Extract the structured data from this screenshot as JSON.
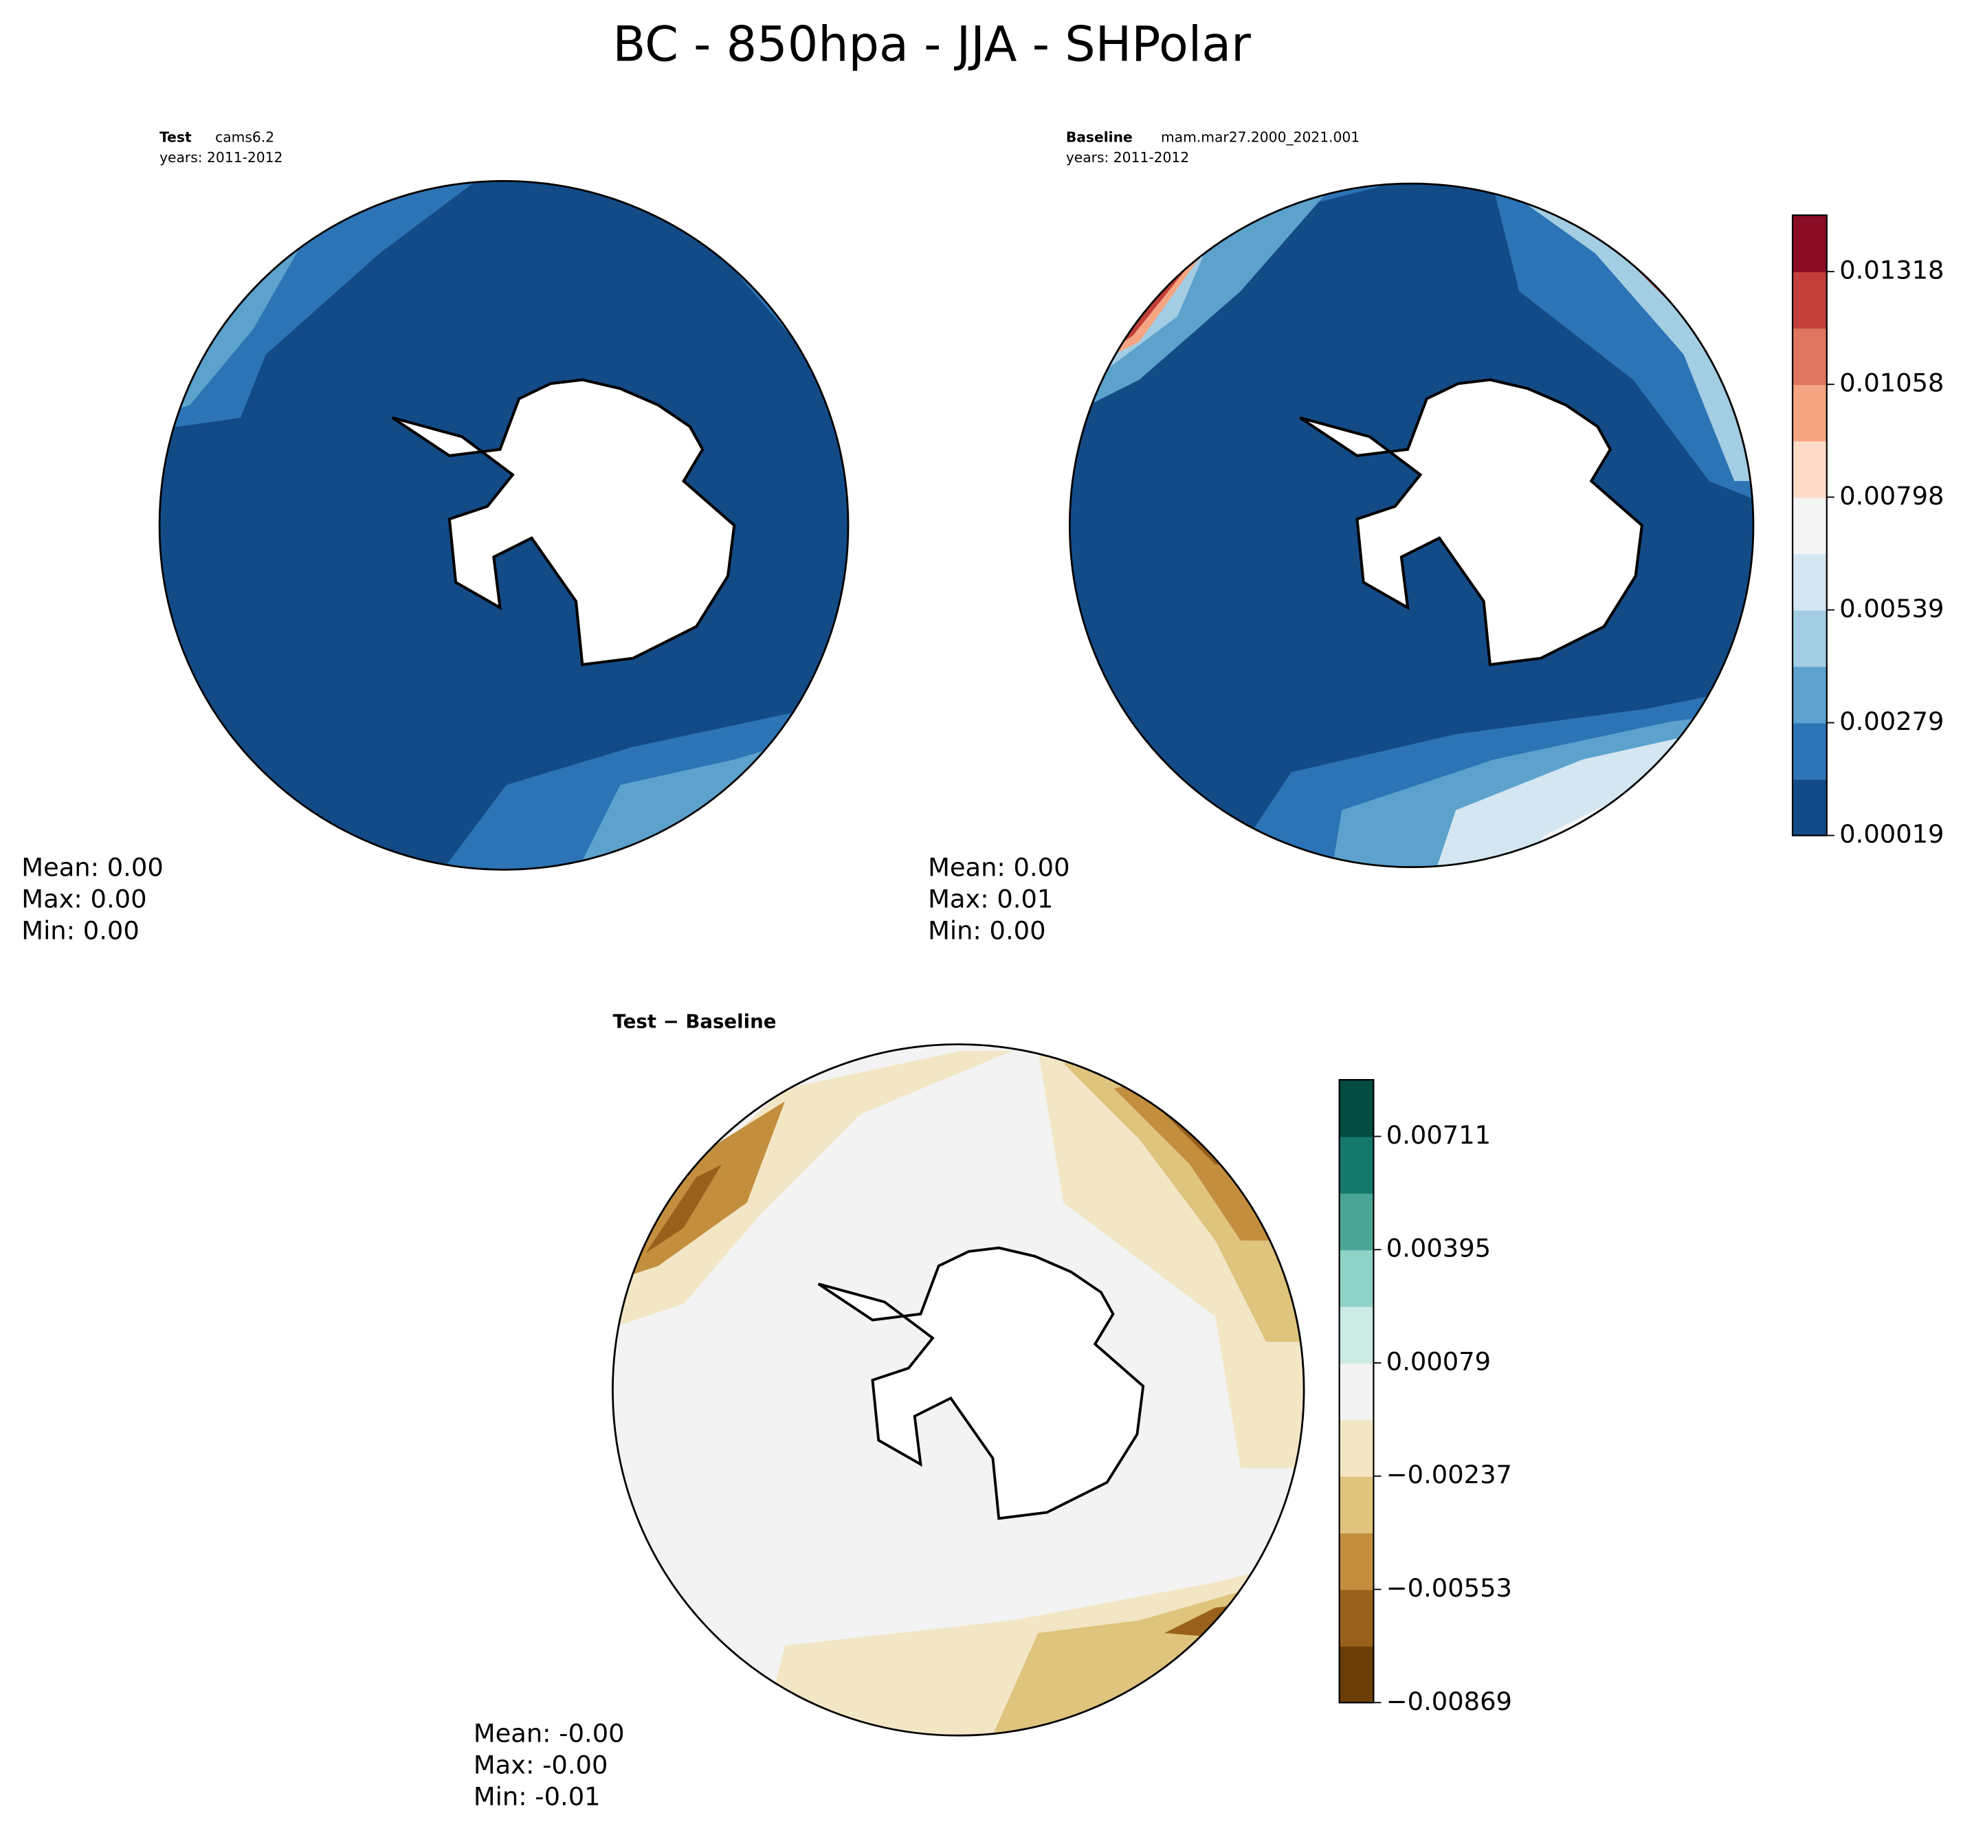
{
  "title": "BC - 850hpa - JJA - SHPolar",
  "panels": [
    {
      "label_bold": "Test",
      "label": "cams6.2",
      "years": "years: 2011-2012",
      "stats": [
        "Mean:  0.00",
        "Max:  0.00",
        "Min:  0.00"
      ]
    },
    {
      "label_bold": "Baseline",
      "label": "mam.mar27.2000_2021.001",
      "years": "years: 2011-2012",
      "stats": [
        "Mean:  0.00",
        "Max:  0.01",
        "Min:  0.00"
      ]
    },
    {
      "label_bold": "Test − Baseline",
      "stats": [
        "Mean: -0.00",
        "Max: -0.00",
        "Min: -0.01"
      ]
    }
  ],
  "colorbars": [
    {
      "colors": [
        "#134b87",
        "#2c74b5",
        "#5ca2cd",
        "#a3cde3",
        "#d4e6f1",
        "#f5f5f5",
        "#fddbc7",
        "#f5a582",
        "#e07560",
        "#c23f3a",
        "#8a0c25"
      ],
      "ticks": [
        "0.00019",
        "0.00279",
        "0.00539",
        "0.00798",
        "0.01058",
        "0.01318"
      ]
    },
    {
      "colors": [
        "#6b3d07",
        "#98601a",
        "#c38f3f",
        "#dfc47e",
        "#f3e6c5",
        "#f2f3f2",
        "#cdebe5",
        "#8fd3c6",
        "#4ba597",
        "#15786d",
        "#024c41"
      ],
      "ticks": [
        "−0.00869",
        "−0.00553",
        "−0.00237",
        "0.00079",
        "0.00395",
        "0.00711"
      ]
    }
  ]
}
